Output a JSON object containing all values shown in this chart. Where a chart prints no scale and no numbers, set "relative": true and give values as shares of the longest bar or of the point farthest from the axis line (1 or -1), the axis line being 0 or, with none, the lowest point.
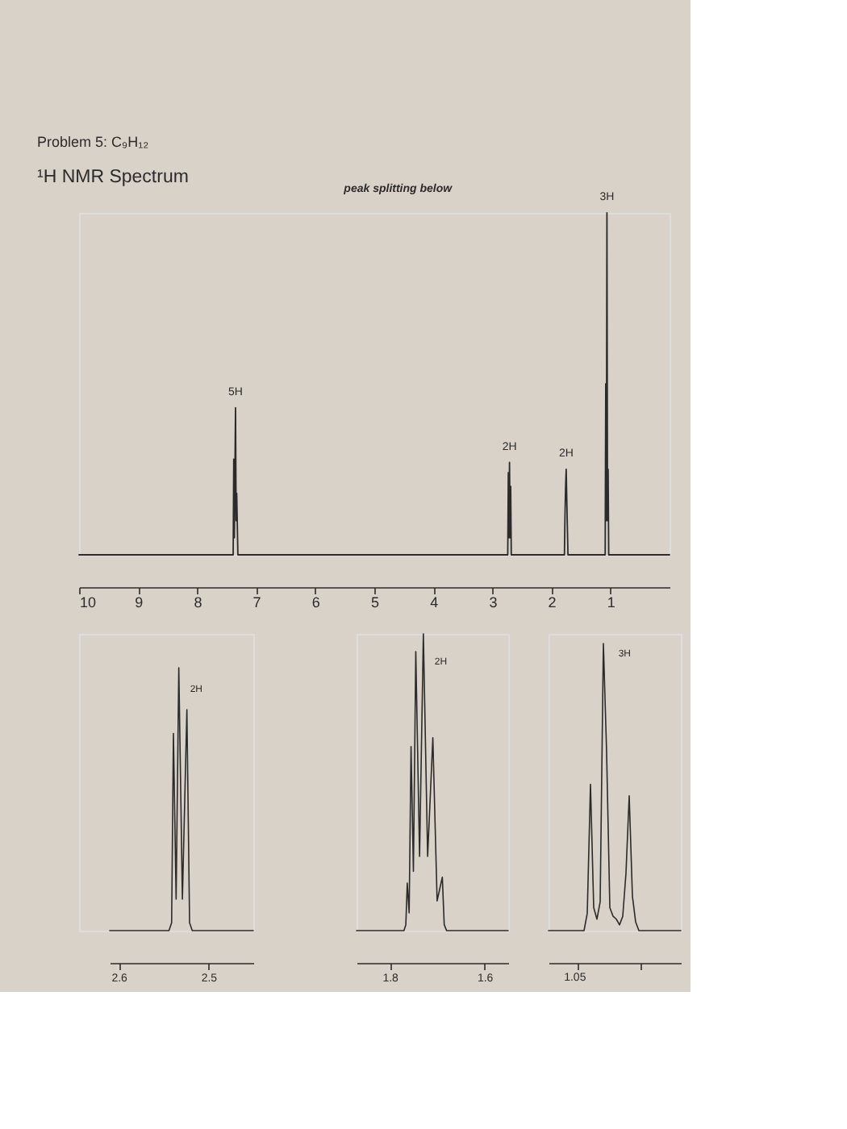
{
  "chart_data": [
    {
      "type": "line",
      "title": "Problem 5: C₉H₁₂",
      "subtitle": "¹H NMR Spectrum",
      "annotations": [
        "peak splitting below",
        {
          "text": "5H",
          "x": 7.35,
          "y": 0.43
        },
        {
          "text": "2H",
          "x": 2.71,
          "y": 0.27
        },
        {
          "text": "2H",
          "x": 1.75,
          "y": 0.25
        },
        {
          "text": "3H",
          "x": 1.06,
          "y": 1
        }
      ],
      "relative": true,
      "xlim": [
        10,
        0
      ],
      "xticks": [
        10,
        9,
        8,
        7,
        6,
        5,
        4,
        3,
        2,
        1
      ],
      "x": [
        10,
        7.39,
        7.38,
        7.37,
        7.35,
        7.34,
        7.33,
        7.31,
        2.74,
        2.73,
        2.72,
        2.71,
        2.7,
        2.69,
        2.68,
        1.78,
        1.77,
        1.76,
        1.75,
        1.74,
        1.73,
        1.72,
        1.09,
        1.08,
        1.07,
        1.06,
        1.05,
        1.04,
        1.03,
        0
      ],
      "series": [
        {
          "color": "#2b2b2b",
          "values": [
            0,
            0,
            0.28,
            0.05,
            0.43,
            0.1,
            0.18,
            0,
            0,
            0.24,
            0.05,
            0.27,
            0.05,
            0.2,
            0,
            0,
            0.12,
            0.2,
            0.25,
            0.16,
            0.08,
            0,
            0,
            0.5,
            0.1,
            1,
            0.1,
            0.25,
            0,
            0
          ]
        }
      ]
    },
    {
      "type": "line",
      "annotations": [
        {
          "text": "2H",
          "x": 2.533,
          "y": 1
        }
      ],
      "relative": true,
      "xlim": [
        2.61,
        2.45
      ],
      "xticks": [
        2.6,
        2.5
      ],
      "x": [
        2.61,
        2.544,
        2.541,
        2.539,
        2.536,
        2.533,
        2.529,
        2.524,
        2.521,
        2.518,
        2.45
      ],
      "series": [
        {
          "color": "#2b2b2b",
          "values": [
            0,
            0,
            0.03,
            0.75,
            0.12,
            1,
            0.12,
            0.84,
            0.03,
            0,
            0
          ]
        }
      ]
    },
    {
      "type": "line",
      "annotations": [
        {
          "text": "2H",
          "x": 1.729,
          "y": 1
        }
      ],
      "relative": true,
      "xlim": [
        1.87,
        1.55
      ],
      "xticks": [
        1.8,
        1.6
      ],
      "x": [
        1.87,
        1.77,
        1.766,
        1.763,
        1.759,
        1.755,
        1.75,
        1.745,
        1.737,
        1.729,
        1.72,
        1.709,
        1.7,
        1.689,
        1.685,
        1.68,
        1.55
      ],
      "series": [
        {
          "color": "#2b2b2b",
          "values": [
            0,
            0,
            0.02,
            0.16,
            0.06,
            0.62,
            0.2,
            0.94,
            0.25,
            1,
            0.25,
            0.65,
            0.1,
            0.18,
            0.02,
            0,
            0
          ]
        }
      ]
    },
    {
      "type": "line",
      "annotations": [
        "3H",
        "1.05"
      ],
      "relative": true,
      "categories": [
        null,
        null,
        null,
        null,
        null,
        null,
        null,
        null,
        null,
        null,
        null,
        null,
        null,
        null,
        null,
        null,
        null,
        null,
        null,
        null,
        null,
        null,
        null,
        null,
        null,
        null,
        null,
        null,
        null,
        null,
        null,
        null,
        null,
        null,
        null,
        null,
        null,
        null,
        null,
        null,
        null,
        null
      ],
      "series": [
        {
          "color": "#2b2b2b",
          "values": [
            0,
            0,
            0,
            0,
            0,
            0,
            0,
            0,
            0,
            0,
            0,
            0,
            0.06,
            0.51,
            0.08,
            0.04,
            0.1,
            1,
            0.62,
            0.08,
            0.05,
            0.04,
            0.02,
            0.05,
            0.2,
            0.47,
            0.12,
            0.03,
            0,
            0,
            0,
            0,
            0,
            0,
            0,
            0,
            0,
            0,
            0,
            0,
            0,
            0
          ]
        }
      ]
    }
  ]
}
